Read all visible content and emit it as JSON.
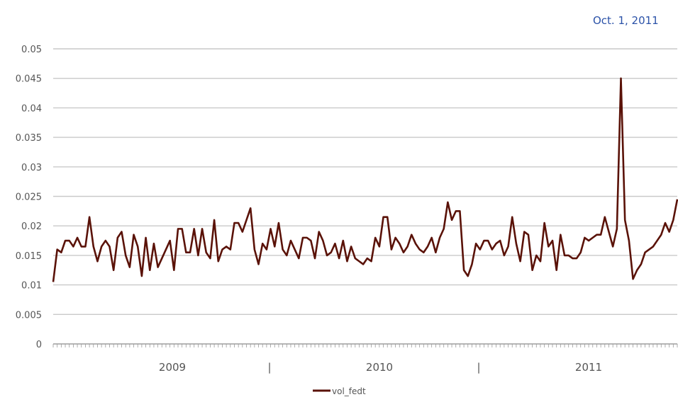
{
  "chart_data": {
    "type": "line",
    "title": "",
    "xlabel": "",
    "ylabel": "",
    "ylim": [
      0,
      0.05
    ],
    "yticks": [
      "0",
      "0.005",
      "0.01",
      "0.015",
      "0.02",
      "0.025",
      "0.03",
      "0.035",
      "0.04",
      "0.045",
      "0.05"
    ],
    "grid": true,
    "legend": "bottom",
    "year_labels": [
      "2009",
      "2010",
      "2011"
    ],
    "separator_glyph": "|",
    "colors": {
      "series": "#5a1208",
      "annotation": "#2b52a8",
      "grid": "#c9c9c9"
    },
    "annotation": {
      "label": "Oct. 1, 2011",
      "x_index": 163
    },
    "series": [
      {
        "name": "vol_fedt",
        "values": [
          0.0105,
          0.016,
          0.0155,
          0.0175,
          0.0175,
          0.0165,
          0.018,
          0.0165,
          0.0165,
          0.0215,
          0.0165,
          0.014,
          0.0165,
          0.0175,
          0.0165,
          0.0125,
          0.018,
          0.019,
          0.015,
          0.013,
          0.0185,
          0.0165,
          0.0115,
          0.018,
          0.0125,
          0.017,
          0.013,
          0.0145,
          0.016,
          0.0175,
          0.0125,
          0.0195,
          0.0195,
          0.0155,
          0.0155,
          0.0195,
          0.015,
          0.0195,
          0.0155,
          0.0145,
          0.021,
          0.014,
          0.016,
          0.0165,
          0.016,
          0.0205,
          0.0205,
          0.019,
          0.021,
          0.023,
          0.016,
          0.0135,
          0.017,
          0.016,
          0.0195,
          0.0165,
          0.0205,
          0.016,
          0.015,
          0.0175,
          0.016,
          0.0145,
          0.018,
          0.018,
          0.0175,
          0.0145,
          0.019,
          0.0175,
          0.015,
          0.0155,
          0.017,
          0.0145,
          0.0175,
          0.014,
          0.0165,
          0.0145,
          0.014,
          0.0135,
          0.0145,
          0.014,
          0.018,
          0.0165,
          0.0215,
          0.0215,
          0.016,
          0.018,
          0.017,
          0.0155,
          0.0165,
          0.0185,
          0.017,
          0.016,
          0.0155,
          0.0165,
          0.018,
          0.0155,
          0.018,
          0.0195,
          0.024,
          0.021,
          0.0225,
          0.0225,
          0.0125,
          0.0115,
          0.0135,
          0.017,
          0.016,
          0.0175,
          0.0175,
          0.016,
          0.017,
          0.0175,
          0.015,
          0.0165,
          0.0215,
          0.017,
          0.014,
          0.019,
          0.0185,
          0.0125,
          0.015,
          0.014,
          0.0205,
          0.0165,
          0.0175,
          0.0125,
          0.0185,
          0.015,
          0.015,
          0.0145,
          0.0145,
          0.0155,
          0.018,
          0.0175,
          0.018,
          0.0185,
          0.0185,
          0.0215,
          0.019,
          0.0165,
          0.0195,
          0.045,
          0.021,
          0.0175,
          0.011,
          0.0125,
          0.0135,
          0.0155,
          0.016,
          0.0165,
          0.0175,
          0.0185,
          0.0205,
          0.019,
          0.021,
          0.0245
        ]
      }
    ]
  }
}
